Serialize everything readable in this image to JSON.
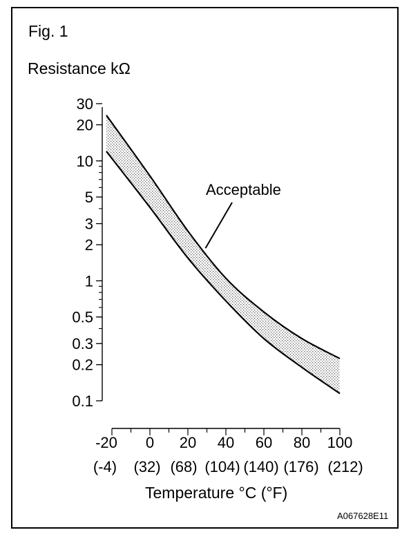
{
  "figure": {
    "label": "Fig. 1",
    "code": "A067628E11"
  },
  "chart_data": {
    "type": "area",
    "ylabel": "Resistance kΩ",
    "xlabel": "Temperature °C (°F)",
    "y_scale": "log",
    "ylim": [
      0.1,
      30
    ],
    "xlim": [
      -20,
      100
    ],
    "y_tick_labels": [
      "30",
      "20",
      "10",
      "5",
      "3",
      "2",
      "1",
      "0.5",
      "0.3",
      "0.2",
      "0.1"
    ],
    "y_tick_values": [
      30,
      20,
      10,
      5,
      3,
      2,
      1,
      0.5,
      0.3,
      0.2,
      0.1
    ],
    "x_tick_values": [
      -20,
      0,
      20,
      40,
      60,
      80,
      100
    ],
    "x_tick_labels": [
      "-20",
      "0",
      "20",
      "40",
      "60",
      "80",
      "100"
    ],
    "x_tick_labels_f": [
      "(-4)",
      "(32)",
      "(68)",
      "(104)",
      "(140)",
      "(176)",
      "(212)"
    ],
    "grid": false,
    "series": [
      {
        "x": [
          -20,
          0,
          20,
          40,
          60,
          80,
          100
        ],
        "upper": [
          24,
          7.5,
          2.6,
          1.05,
          0.55,
          0.33,
          0.225
        ],
        "lower": [
          12,
          4.1,
          1.55,
          0.68,
          0.33,
          0.19,
          0.115
        ]
      }
    ],
    "annotations": [
      {
        "text": "Acceptable",
        "x": 30,
        "y": 2.0
      }
    ]
  }
}
